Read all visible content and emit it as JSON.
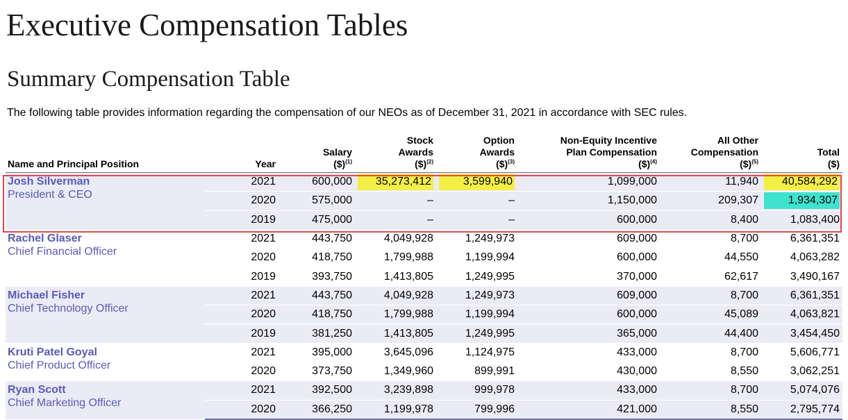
{
  "page": {
    "title": "Executive Compensation Tables",
    "subtitle": "Summary Compensation Table",
    "intro": "The following table provides information regarding the compensation of our NEOs as of December 31, 2021 in accordance with SEC rules."
  },
  "columns": {
    "name": "Name and Principal Position",
    "year": "Year",
    "salary_l1": "Salary",
    "salary_l2": "($)",
    "salary_fn": "(1)",
    "stock_l1": "Stock",
    "stock_l2": "Awards",
    "stock_l3": "($)",
    "stock_fn": "(2)",
    "option_l1": "Option",
    "option_l2": "Awards",
    "option_l3": "($)",
    "option_fn": "(3)",
    "neip_l1": "Non-Equity Incentive",
    "neip_l2": "Plan Compensation",
    "neip_l3": "($)",
    "neip_fn": "(4)",
    "other_l1": "All Other",
    "other_l2": "Compensation",
    "other_l3": "($)",
    "other_fn": "(5)",
    "total_l1": "Total",
    "total_l2": "($)"
  },
  "executives": [
    {
      "name": "Josh Silverman",
      "title": "President & CEO",
      "rows": [
        {
          "year": "2021",
          "salary": "600,000",
          "stock": "35,273,412",
          "option": "3,599,940",
          "neip": "1,099,000",
          "other": "11,940",
          "total": "40,584,292"
        },
        {
          "year": "2020",
          "salary": "575,000",
          "stock": "–",
          "option": "–",
          "neip": "1,150,000",
          "other": "209,307",
          "total": "1,934,307"
        },
        {
          "year": "2019",
          "salary": "475,000",
          "stock": "–",
          "option": "–",
          "neip": "600,000",
          "other": "8,400",
          "total": "1,083,400"
        }
      ]
    },
    {
      "name": "Rachel Glaser",
      "title": "Chief Financial Officer",
      "rows": [
        {
          "year": "2021",
          "salary": "443,750",
          "stock": "4,049,928",
          "option": "1,249,973",
          "neip": "609,000",
          "other": "8,700",
          "total": "6,361,351"
        },
        {
          "year": "2020",
          "salary": "418,750",
          "stock": "1,799,988",
          "option": "1,199,994",
          "neip": "600,000",
          "other": "44,550",
          "total": "4,063,282"
        },
        {
          "year": "2019",
          "salary": "393,750",
          "stock": "1,413,805",
          "option": "1,249,995",
          "neip": "370,000",
          "other": "62,617",
          "total": "3,490,167"
        }
      ]
    },
    {
      "name": "Michael Fisher",
      "title": "Chief Technology Officer",
      "rows": [
        {
          "year": "2021",
          "salary": "443,750",
          "stock": "4,049,928",
          "option": "1,249,973",
          "neip": "609,000",
          "other": "8,700",
          "total": "6,361,351"
        },
        {
          "year": "2020",
          "salary": "418,750",
          "stock": "1,799,988",
          "option": "1,199,994",
          "neip": "600,000",
          "other": "45,089",
          "total": "4,063,821"
        },
        {
          "year": "2019",
          "salary": "381,250",
          "stock": "1,413,805",
          "option": "1,249,995",
          "neip": "365,000",
          "other": "44,400",
          "total": "3,454,450"
        }
      ]
    },
    {
      "name": "Kruti Patel Goyal",
      "title": "Chief Product Officer",
      "rows": [
        {
          "year": "2021",
          "salary": "395,000",
          "stock": "3,645,096",
          "option": "1,124,975",
          "neip": "433,000",
          "other": "8,700",
          "total": "5,606,771"
        },
        {
          "year": "2020",
          "salary": "373,750",
          "stock": "1,349,960",
          "option": "899,991",
          "neip": "430,000",
          "other": "8,550",
          "total": "3,062,251"
        }
      ]
    },
    {
      "name": "Ryan Scott",
      "title": "Chief Marketing Officer",
      "rows": [
        {
          "year": "2021",
          "salary": "392,500",
          "stock": "3,239,898",
          "option": "999,978",
          "neip": "433,000",
          "other": "8,700",
          "total": "5,074,076"
        },
        {
          "year": "2020",
          "salary": "366,250",
          "stock": "1,199,978",
          "option": "799,996",
          "neip": "421,000",
          "other": "8,550",
          "total": "2,795,774"
        }
      ]
    }
  ],
  "highlight_colors": {
    "yellow": "#f3ef45",
    "cyan": "#3ee3cf",
    "annotation_box": "#e04848"
  },
  "highlights": [
    {
      "exec": 0,
      "row": 0,
      "field": "stock",
      "color": "yellow"
    },
    {
      "exec": 0,
      "row": 0,
      "field": "option",
      "color": "yellow"
    },
    {
      "exec": 0,
      "row": 0,
      "field": "total",
      "color": "yellow"
    },
    {
      "exec": 0,
      "row": 1,
      "field": "total",
      "color": "cyan"
    }
  ]
}
